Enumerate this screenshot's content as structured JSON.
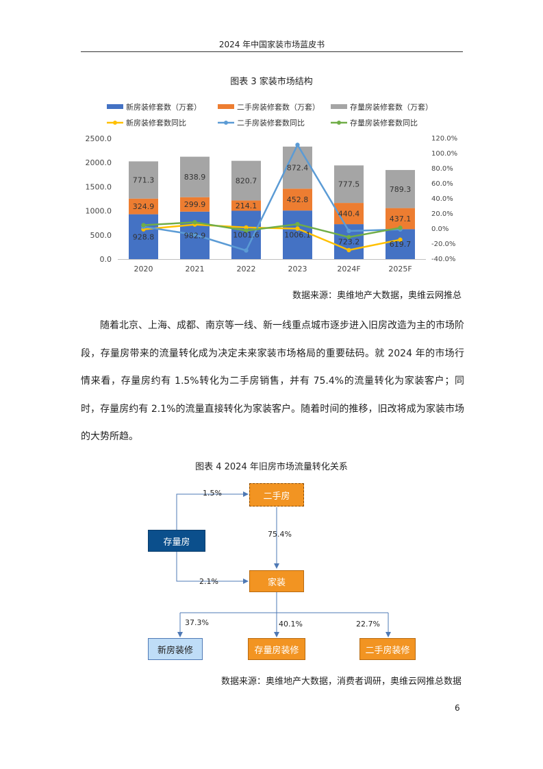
{
  "header": {
    "title": "2024 年中国家装市场蓝皮书"
  },
  "figure3": {
    "caption": "图表 3   家装市场结构",
    "source": "数据来源：奥维地产大数据，奥维云网推总"
  },
  "chart_data": {
    "type": "bar",
    "stacked": true,
    "categories": [
      "2020",
      "2021",
      "2022",
      "2023",
      "2024F",
      "2025F"
    ],
    "series": [
      {
        "name": "新房装修套数（万套）",
        "kind": "bar",
        "axis": "left",
        "color": "#4472C4",
        "values": [
          928.8,
          982.9,
          1001.6,
          1006.1,
          723.2,
          619.7
        ]
      },
      {
        "name": "二手房装修套数（万套）",
        "kind": "bar",
        "axis": "left",
        "color": "#ED7D31",
        "values": [
          324.9,
          299.9,
          214.1,
          452.8,
          440.4,
          437.1
        ]
      },
      {
        "name": "存量房装修套数（万套）",
        "kind": "bar",
        "axis": "left",
        "color": "#A5A5A5",
        "values": [
          771.3,
          838.9,
          820.7,
          872.4,
          777.5,
          789.3
        ]
      },
      {
        "name": "新房装修套数同比",
        "kind": "line",
        "axis": "right",
        "color": "#FFC000",
        "values": [
          -0.5,
          5.8,
          1.9,
          0.4,
          -28.1,
          -14.3
        ]
      },
      {
        "name": "二手房装修套数同比",
        "kind": "line",
        "axis": "right",
        "color": "#5B9BD5",
        "values": [
          3.0,
          -7.7,
          -28.6,
          111.5,
          -2.7,
          -0.7
        ]
      },
      {
        "name": "存量房装修套数同比",
        "kind": "line",
        "axis": "right",
        "color": "#70AD47",
        "values": [
          5.0,
          8.8,
          -2.2,
          6.3,
          -10.9,
          1.5
        ]
      }
    ],
    "y_left": {
      "min": 0,
      "max": 2500,
      "ticks": [
        "0.0",
        "500.0",
        "1000.0",
        "1500.0",
        "2000.0",
        "2500.0"
      ]
    },
    "y_right": {
      "min": -40,
      "max": 120,
      "ticks": [
        "-40.0%",
        "-20.0%",
        "0.0%",
        "20.0%",
        "40.0%",
        "60.0%",
        "80.0%",
        "100.0%",
        "120.0%"
      ]
    },
    "legend_position": "top",
    "grid": false
  },
  "body_text": "随着北京、上海、成都、南京等一线、新一线重点城市逐步进入旧房改造为主的市场阶段，存量房带来的流量转化成为决定未来家装市场格局的重要砝码。就 2024 年的市场行情来看，存量房约有 1.5%转化为二手房销售，并有 75.4%的流量转化为家装客户；同时，存量房约有 2.1%的流量直接转化为家装客户。随着时间的推移，旧改将成为家装市场的大势所趋。",
  "figure4": {
    "caption": "图表 4   2024 年旧房市场流量转化关系",
    "source": "数据来源：奥维地产大数据，消费者调研，奥维云网推总数据",
    "nodes": {
      "existing": "存量房",
      "second_hand": "二手房",
      "decoration": "家装",
      "new_reno": "新房装修",
      "existing_reno": "存量房装修",
      "second_reno": "二手房装修"
    },
    "edges": {
      "existing_to_second": "1.5%",
      "second_to_decoration": "75.4%",
      "existing_to_decoration": "2.1%",
      "decoration_to_new": "37.3%",
      "decoration_to_existing": "40.1%",
      "decoration_to_second": "22.7%"
    },
    "colors": {
      "dark_blue": "#0B4F8C",
      "orange": "#F29422",
      "light_blue": "#BFDDF7",
      "line": "#4E79B5"
    }
  },
  "page_number": "6"
}
